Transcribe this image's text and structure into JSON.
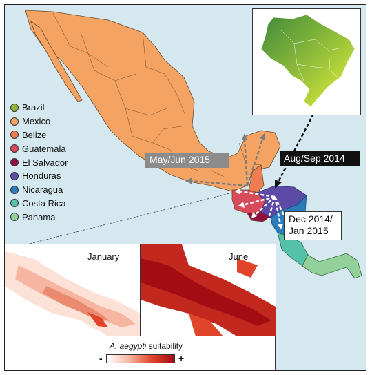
{
  "legend": {
    "items": [
      {
        "label": "Brazil",
        "color": "#8fb83a"
      },
      {
        "label": "Mexico",
        "color": "#f4a363"
      },
      {
        "label": "Belize",
        "color": "#ee7d52"
      },
      {
        "label": "Guatemala",
        "color": "#d94a5a"
      },
      {
        "label": "El Salvador",
        "color": "#8e1140"
      },
      {
        "label": "Honduras",
        "color": "#5b4aa6"
      },
      {
        "label": "Nicaragua",
        "color": "#2b7bbd"
      },
      {
        "label": "Costa Rica",
        "color": "#55c1a7"
      },
      {
        "label": "Panama",
        "color": "#93d19a"
      }
    ]
  },
  "routes": {
    "may_jun": "May/Jun 2015",
    "aug_sep": "Aug/Sep 2014",
    "dec_jan_line1": "Dec 2014/",
    "dec_jan_line2": "Jan 2015"
  },
  "suitability": {
    "panel_january": "January",
    "panel_june": "June",
    "scale_label_italic": "A. aegypti",
    "scale_label_rest": "suitability",
    "scale_min": "-",
    "scale_max": "+",
    "scale_colors": [
      "#ffffff",
      "#f5b5a0",
      "#e0452b",
      "#a40c14"
    ]
  },
  "colors": {
    "sea": "#d5e8ef",
    "brazil_gradient": [
      "#3f8a3a",
      "#e6f03a"
    ]
  }
}
